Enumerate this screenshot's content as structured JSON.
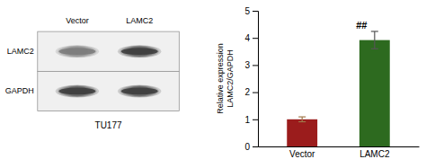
{
  "chart_data": [
    {
      "type": "blot",
      "title": "TU177",
      "categories": [
        "Vector",
        "LAMC2"
      ],
      "series": [
        {
          "name": "LAMC2",
          "colors": [
            "#7a7a7a",
            "#3a3a3a"
          ]
        },
        {
          "name": "GAPDH",
          "colors": [
            "#3a3a3a",
            "#3a3a3a"
          ]
        }
      ]
    },
    {
      "type": "bar",
      "categories": [
        "Vector",
        "LAMC2"
      ],
      "values": [
        1.0,
        3.92
      ],
      "errors": [
        0.09,
        0.32
      ],
      "error_colors": [
        "#A0784A",
        "#555555"
      ],
      "colors": [
        "#9B1C1C",
        "#2D6A1F"
      ],
      "y_label": "Relative expression\nLAMC2/GAPDH",
      "ylim": [
        0,
        5
      ],
      "yticks": [
        0,
        1,
        2,
        3,
        4,
        5
      ],
      "annotations": [
        {
          "text": "##",
          "category": "LAMC2"
        }
      ],
      "grid": false
    }
  ]
}
